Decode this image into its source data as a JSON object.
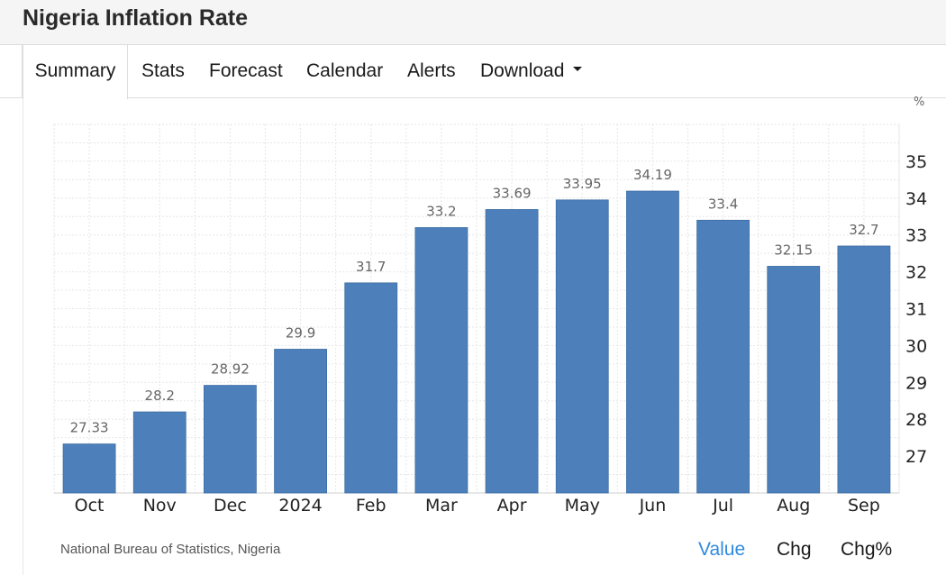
{
  "header": {
    "title": "Nigeria Inflation Rate"
  },
  "tabs": [
    {
      "label": "Summary",
      "active": true
    },
    {
      "label": "Stats"
    },
    {
      "label": "Forecast"
    },
    {
      "label": "Calendar"
    },
    {
      "label": "Alerts"
    },
    {
      "label": "Download",
      "icon": "caret-down-icon"
    }
  ],
  "chart_data": {
    "type": "bar",
    "categories": [
      "Oct",
      "Nov",
      "Dec",
      "2024",
      "Feb",
      "Mar",
      "Apr",
      "May",
      "Jun",
      "Jul",
      "Aug",
      "Sep"
    ],
    "values": [
      27.33,
      28.2,
      28.92,
      29.9,
      31.7,
      33.2,
      33.69,
      33.95,
      34.19,
      33.4,
      32.15,
      32.7
    ],
    "data_labels": [
      "27.33",
      "28.2",
      "28.92",
      "29.9",
      "31.7",
      "33.2",
      "33.69",
      "33.95",
      "34.19",
      "33.4",
      "32.15",
      "32.7"
    ],
    "y_ticks": [
      27,
      28,
      29,
      30,
      31,
      32,
      33,
      34,
      35
    ],
    "ylim": [
      26,
      36
    ],
    "y_unit": "%",
    "y_axis_position": "right",
    "grid": true,
    "bar_color": "#4d80bb"
  },
  "footer": {
    "source": "National Bureau of Statistics, Nigeria",
    "views": [
      "Value",
      "Chg",
      "Chg%"
    ],
    "active_view": "Value",
    "active_color": "#2f8be0"
  }
}
